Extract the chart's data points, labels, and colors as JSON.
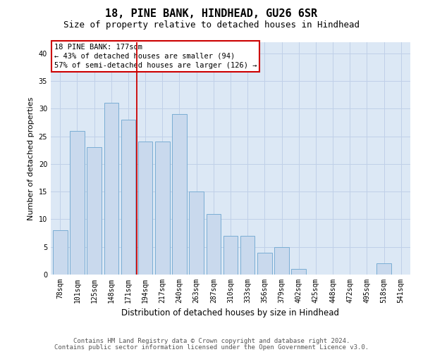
{
  "title1": "18, PINE BANK, HINDHEAD, GU26 6SR",
  "title2": "Size of property relative to detached houses in Hindhead",
  "xlabel": "Distribution of detached houses by size in Hindhead",
  "ylabel": "Number of detached properties",
  "categories": [
    "78sqm",
    "101sqm",
    "125sqm",
    "148sqm",
    "171sqm",
    "194sqm",
    "217sqm",
    "240sqm",
    "263sqm",
    "287sqm",
    "310sqm",
    "333sqm",
    "356sqm",
    "379sqm",
    "402sqm",
    "425sqm",
    "448sqm",
    "472sqm",
    "495sqm",
    "518sqm",
    "541sqm"
  ],
  "values": [
    8,
    26,
    23,
    31,
    28,
    24,
    24,
    29,
    15,
    11,
    7,
    7,
    4,
    5,
    1,
    0,
    0,
    0,
    0,
    2,
    0
  ],
  "bar_color": "#c9d9ed",
  "bar_edge_color": "#7aadd4",
  "vline_color": "#cc0000",
  "vline_x_index": 4,
  "annotation_text": "18 PINE BANK: 177sqm\n← 43% of detached houses are smaller (94)\n57% of semi-detached houses are larger (126) →",
  "annotation_box_facecolor": "#ffffff",
  "annotation_box_edgecolor": "#cc0000",
  "ylim": [
    0,
    42
  ],
  "yticks": [
    0,
    5,
    10,
    15,
    20,
    25,
    30,
    35,
    40
  ],
  "grid_color": "#c0d0e8",
  "background_color": "#dce8f5",
  "footer1": "Contains HM Land Registry data © Crown copyright and database right 2024.",
  "footer2": "Contains public sector information licensed under the Open Government Licence v3.0.",
  "title1_fontsize": 11,
  "title2_fontsize": 9,
  "xlabel_fontsize": 8.5,
  "ylabel_fontsize": 8,
  "tick_fontsize": 7,
  "annotation_fontsize": 7.5,
  "footer_fontsize": 6.5
}
